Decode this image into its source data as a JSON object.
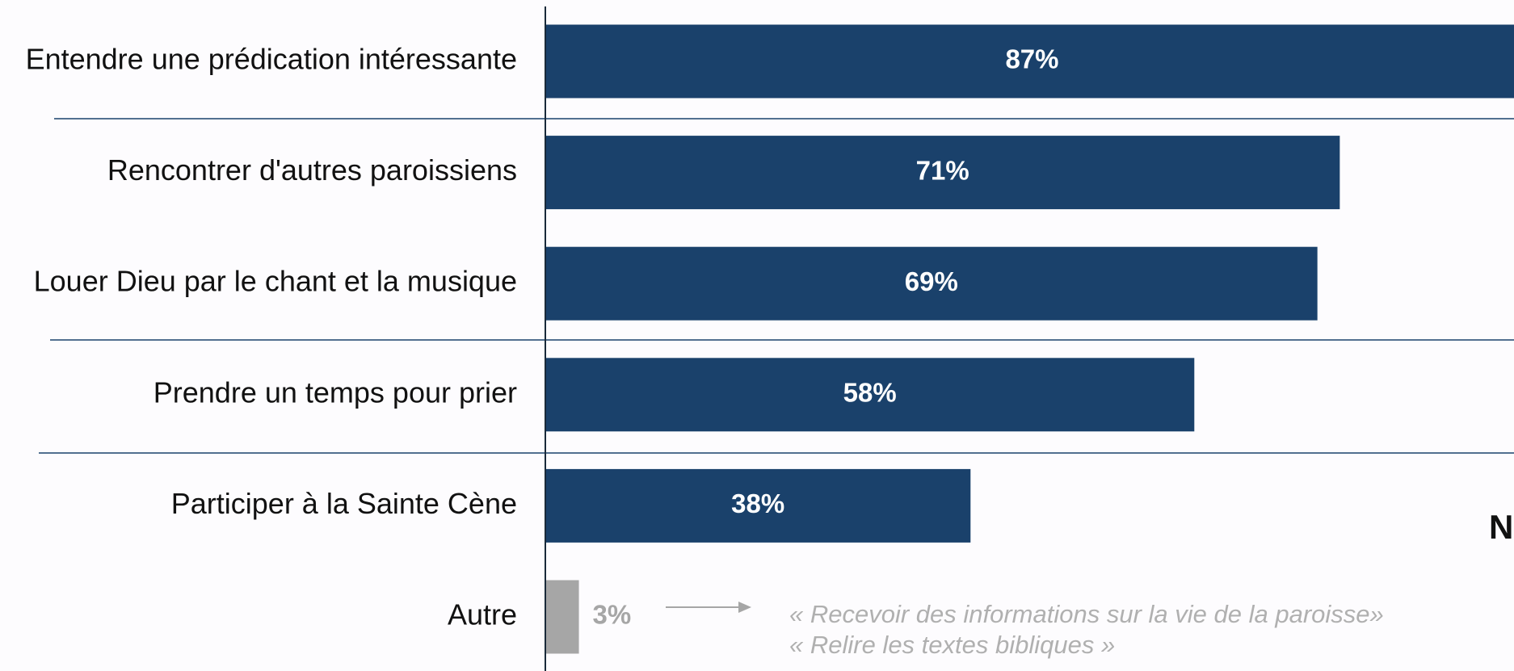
{
  "chart_data": {
    "type": "bar",
    "categories": [
      "Entendre une prédication intéressante",
      "Rencontrer d'autres paroissiens",
      "Louer Dieu par le chant et la musique",
      "Prendre un temps pour prier",
      "Participer à la Sainte Cène",
      "Autre"
    ],
    "values": [
      87,
      71,
      69,
      58,
      38,
      3
    ],
    "value_labels": [
      "87%",
      "71%",
      "69%",
      "58%",
      "38%",
      "3%"
    ],
    "colors": [
      "#1a416b",
      "#1a416b",
      "#1a416b",
      "#1a416b",
      "#1a416b",
      "#a6a6a6"
    ],
    "annotations": [
      "« Recevoir des informations sur la vie de la paroisse»",
      "« Relire les textes bibliques »",
      "N"
    ]
  }
}
